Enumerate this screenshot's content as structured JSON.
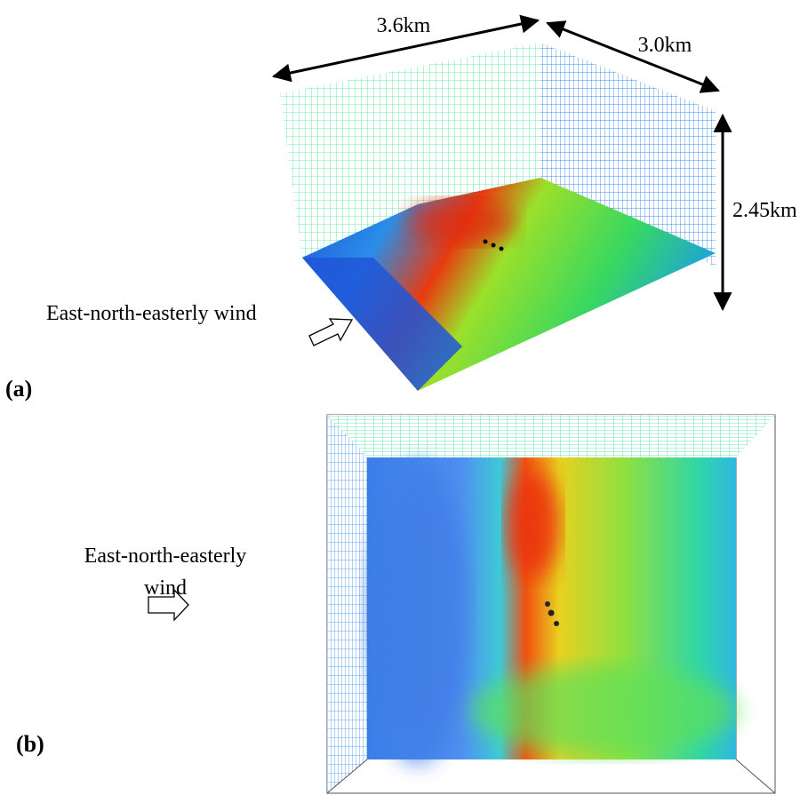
{
  "panel_a": {
    "label": "(a)",
    "width_label": "3.6km",
    "depth_label": "3.0km",
    "height_label": "2.45km",
    "wind_label": "East-north-easterly wind"
  },
  "panel_b": {
    "label": "(b)",
    "wind_label_lines": [
      "East-north-easterly",
      "wind"
    ]
  }
}
